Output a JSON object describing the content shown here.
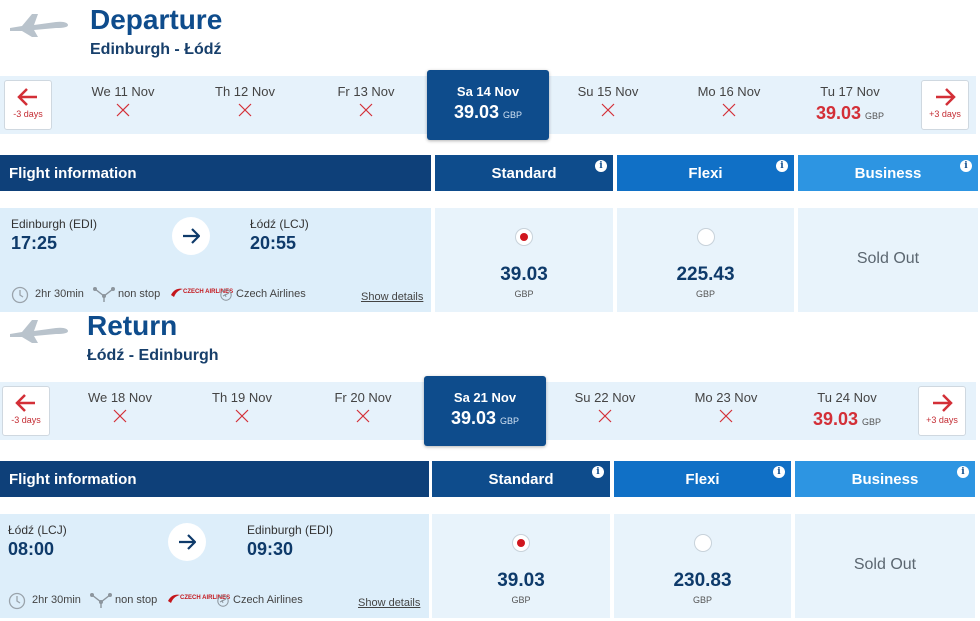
{
  "departure": {
    "title": "Departure",
    "route": "Edinburgh - Łódź",
    "dates": {
      "prev_label": "-3 days",
      "next_label": "+3 days",
      "days": [
        {
          "label": "We 11 Nov",
          "available": false
        },
        {
          "label": "Th 12 Nov",
          "available": false
        },
        {
          "label": "Fr 13 Nov",
          "available": false
        },
        {
          "label": "Sa 14 Nov",
          "price": "39.03",
          "currency": "GBP",
          "selected": true
        },
        {
          "label": "Su 15 Nov",
          "available": false
        },
        {
          "label": "Mo 16 Nov",
          "available": false
        },
        {
          "label": "Tu 17 Nov",
          "price": "39.03",
          "currency": "GBP"
        }
      ]
    },
    "headers": {
      "info": "Flight information",
      "standard": "Standard",
      "flexi": "Flexi",
      "business": "Business"
    },
    "flight": {
      "from_code": "Edinburgh (EDI)",
      "from_time": "17:25",
      "to_code": "Łódź (LCJ)",
      "to_time": "20:55",
      "duration": "2hr 30min",
      "stops": "non stop",
      "airline_logo_text": "CZECH AIRLINES",
      "operator": "Czech Airlines",
      "details_link": "Show details"
    },
    "fares": {
      "standard": {
        "price": "39.03",
        "currency": "GBP",
        "selected": true
      },
      "flexi": {
        "price": "225.43",
        "currency": "GBP",
        "selected": false
      },
      "business": {
        "status": "Sold Out"
      }
    }
  },
  "return": {
    "title": "Return",
    "route": "Łódź - Edinburgh",
    "dates": {
      "prev_label": "-3 days",
      "next_label": "+3 days",
      "days": [
        {
          "label": "We 18 Nov",
          "available": false
        },
        {
          "label": "Th 19 Nov",
          "available": false
        },
        {
          "label": "Fr 20 Nov",
          "available": false
        },
        {
          "label": "Sa 21 Nov",
          "price": "39.03",
          "currency": "GBP",
          "selected": true
        },
        {
          "label": "Su 22 Nov",
          "available": false
        },
        {
          "label": "Mo 23 Nov",
          "available": false
        },
        {
          "label": "Tu 24 Nov",
          "price": "39.03",
          "currency": "GBP"
        }
      ]
    },
    "headers": {
      "info": "Flight information",
      "standard": "Standard",
      "flexi": "Flexi",
      "business": "Business"
    },
    "flight": {
      "from_code": "Łódź (LCJ)",
      "from_time": "08:00",
      "to_code": "Edinburgh (EDI)",
      "to_time": "09:30",
      "duration": "2hr 30min",
      "stops": "non stop",
      "airline_logo_text": "CZECH AIRLINES",
      "operator": "Czech Airlines",
      "details_link": "Show details"
    },
    "fares": {
      "standard": {
        "price": "39.03",
        "currency": "GBP",
        "selected": true
      },
      "flexi": {
        "price": "230.83",
        "currency": "GBP",
        "selected": false
      },
      "business": {
        "status": "Sold Out"
      }
    }
  },
  "colors": {
    "primary": "#0e4c8c",
    "accent_red": "#d32f37",
    "flexi": "#1070c6",
    "business": "#2d95e2"
  }
}
